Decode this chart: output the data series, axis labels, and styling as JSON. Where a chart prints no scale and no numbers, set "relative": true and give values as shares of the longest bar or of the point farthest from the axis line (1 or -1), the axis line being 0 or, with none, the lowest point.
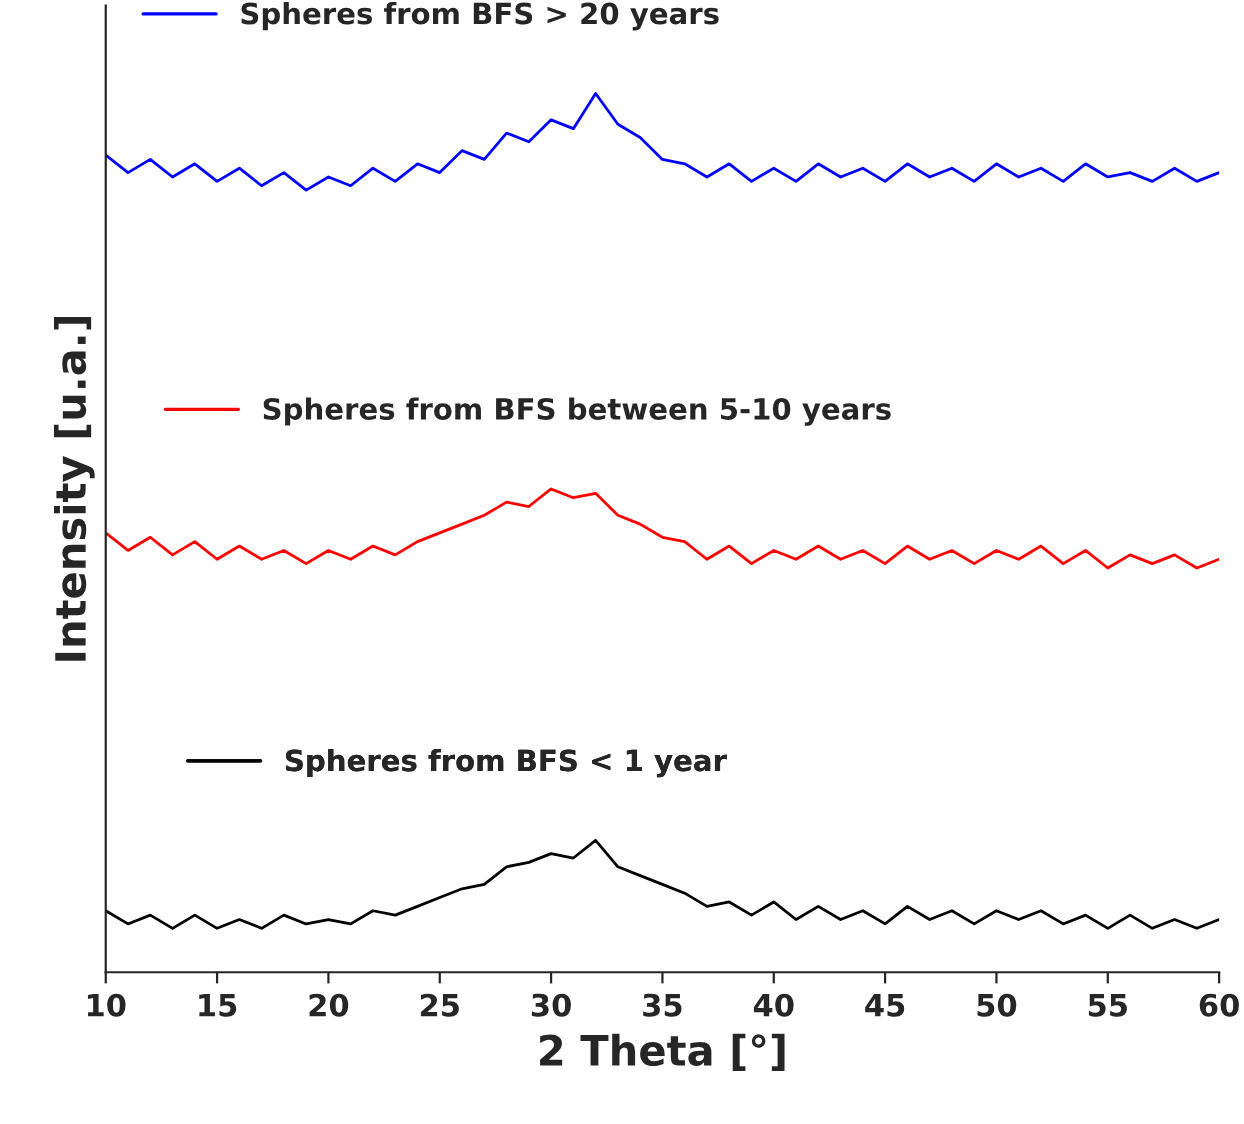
{
  "chart_data": {
    "type": "line",
    "relative": true,
    "xlabel": "2 Theta [°]",
    "ylabel": "Intensity [u.a.]",
    "xlim": [
      10,
      60
    ],
    "xticks": [
      10,
      15,
      20,
      25,
      30,
      35,
      40,
      45,
      50,
      55,
      60
    ],
    "tick_labels": "x",
    "grid": false,
    "legend": "top left",
    "marker": "none",
    "line_style": "solid",
    "x": [
      10,
      11,
      12,
      13,
      14,
      15,
      16,
      17,
      18,
      19,
      20,
      21,
      22,
      23,
      24,
      25,
      26,
      27,
      28,
      29,
      30,
      31,
      32,
      33,
      34,
      35,
      36,
      37,
      38,
      39,
      40,
      41,
      42,
      43,
      44,
      45,
      46,
      47,
      48,
      49,
      50,
      51,
      52,
      53,
      54,
      55,
      56,
      57,
      58,
      59,
      60
    ],
    "series": [
      {
        "name": "Spheres from BFS > 20 years",
        "color": "#0000ff",
        "values": [
          0.93,
          0.91,
          0.925,
          0.905,
          0.92,
          0.9,
          0.915,
          0.895,
          0.91,
          0.89,
          0.905,
          0.895,
          0.915,
          0.9,
          0.92,
          0.91,
          0.935,
          0.925,
          0.955,
          0.945,
          0.97,
          0.96,
          1.0,
          0.965,
          0.95,
          0.925,
          0.92,
          0.905,
          0.92,
          0.9,
          0.915,
          0.9,
          0.92,
          0.905,
          0.915,
          0.9,
          0.92,
          0.905,
          0.915,
          0.9,
          0.92,
          0.905,
          0.915,
          0.9,
          0.92,
          0.905,
          0.91,
          0.9,
          0.915,
          0.9,
          0.91
        ]
      },
      {
        "name": "Spheres from BFS between 5-10 years",
        "color": "#ff0000",
        "values": [
          0.5,
          0.48,
          0.495,
          0.475,
          0.49,
          0.47,
          0.485,
          0.47,
          0.48,
          0.465,
          0.48,
          0.47,
          0.485,
          0.475,
          0.49,
          0.5,
          0.51,
          0.52,
          0.535,
          0.53,
          0.55,
          0.54,
          0.545,
          0.52,
          0.51,
          0.495,
          0.49,
          0.47,
          0.485,
          0.465,
          0.48,
          0.47,
          0.485,
          0.47,
          0.48,
          0.465,
          0.485,
          0.47,
          0.48,
          0.465,
          0.48,
          0.47,
          0.485,
          0.465,
          0.48,
          0.46,
          0.475,
          0.465,
          0.475,
          0.46,
          0.47
        ]
      },
      {
        "name": "Spheres from BFS < 1 year",
        "color": "#000000",
        "values": [
          0.07,
          0.055,
          0.065,
          0.05,
          0.065,
          0.05,
          0.06,
          0.05,
          0.065,
          0.055,
          0.06,
          0.055,
          0.07,
          0.065,
          0.075,
          0.085,
          0.095,
          0.1,
          0.12,
          0.125,
          0.135,
          0.13,
          0.15,
          0.12,
          0.11,
          0.1,
          0.09,
          0.075,
          0.08,
          0.065,
          0.08,
          0.06,
          0.075,
          0.06,
          0.07,
          0.055,
          0.075,
          0.06,
          0.07,
          0.055,
          0.07,
          0.06,
          0.07,
          0.055,
          0.065,
          0.05,
          0.065,
          0.05,
          0.06,
          0.05,
          0.06
        ]
      }
    ]
  }
}
